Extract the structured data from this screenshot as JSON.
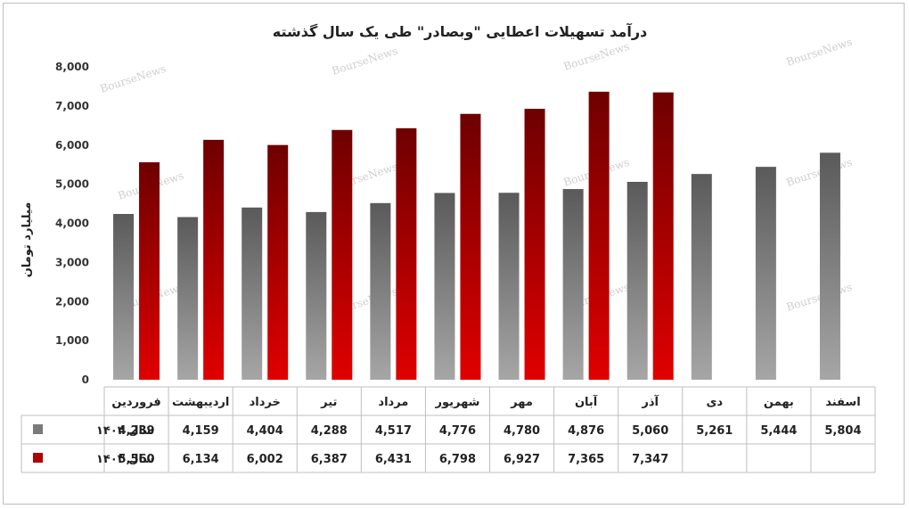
{
  "chart_data": {
    "type": "bar",
    "title": "درآمد تسهیلات اعطایی \"وبصادر\" طی یک سال گذشته",
    "ylabel": "میلیارد تومان",
    "ylim": [
      0,
      8000
    ],
    "yticks": [
      "0",
      "1,000",
      "2,000",
      "3,000",
      "4,000",
      "5,000",
      "6,000",
      "7,000",
      "8,000"
    ],
    "yticks_values": [
      0,
      1000,
      2000,
      3000,
      4000,
      5000,
      6000,
      7000,
      8000
    ],
    "categories": [
      "فروردین",
      "اردیبهشت",
      "خرداد",
      "تیر",
      "مرداد",
      "شهریور",
      "مهر",
      "آبان",
      "آذر",
      "دی",
      "بهمن",
      "اسفند"
    ],
    "series": [
      {
        "name": "سال ۱۴۰۲",
        "color": "#7a7a7a",
        "values": [
          4239,
          4159,
          4404,
          4288,
          4517,
          4776,
          4780,
          4876,
          5060,
          5261,
          5444,
          5804
        ],
        "labels": [
          "4,239",
          "4,159",
          "4,404",
          "4,288",
          "4,517",
          "4,776",
          "4,780",
          "4,876",
          "5,060",
          "5,261",
          "5,444",
          "5,804"
        ]
      },
      {
        "name": "سال ۱۴۰۳",
        "color": "#b00000",
        "values": [
          5560,
          6134,
          6002,
          6387,
          6431,
          6798,
          6927,
          7365,
          7347,
          null,
          null,
          null
        ],
        "labels": [
          "5,560",
          "6,134",
          "6,002",
          "6,387",
          "6,431",
          "6,798",
          "6,927",
          "7,365",
          "7,347",
          "",
          "",
          ""
        ]
      }
    ],
    "grid": false,
    "legend": "data-table-left",
    "watermark": "BourseNews"
  }
}
